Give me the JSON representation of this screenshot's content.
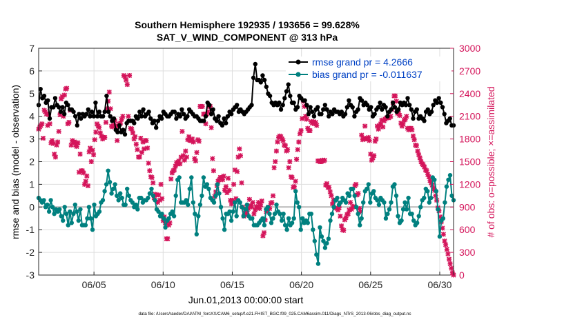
{
  "chart_data": {
    "type": "line",
    "title": "Southern Hemisphere 192935 / 193656 = 99.628%",
    "subtitle": "SAT_V_WIND_COMPONENT @ 313 hPa",
    "xlabel": "Jun.01,2013 00:00:00 start",
    "ylabel_left": "rmse and bias (model - observation)",
    "ylabel_right": "# of obs: o=possible; ×=assimilated",
    "footer": "data file: /Users/raeder/DAI/ATM_forcXX/CAM6_setup/f.e21.FHIST_BGC.f09_025.CAM6assim.011/Diags_NTrS_2013-06/obs_diag_output.nc",
    "xlim": [
      1,
      31
    ],
    "ylim_left": [
      -3,
      7
    ],
    "ylim_right": [
      0,
      3000
    ],
    "x_ticks": [
      5,
      10,
      15,
      20,
      25,
      30
    ],
    "x_tick_labels": [
      "06/05",
      "06/10",
      "06/15",
      "06/20",
      "06/25",
      "06/30"
    ],
    "y_left_ticks": [
      -3,
      -2,
      -1,
      0,
      1,
      2,
      3,
      4,
      5,
      6,
      7
    ],
    "y_right_ticks": [
      0,
      300,
      600,
      900,
      1200,
      1500,
      1800,
      2100,
      2400,
      2700,
      3000
    ],
    "legend": [
      "rmse grand pr = 4.2666",
      "bias grand pr = -0.011637"
    ],
    "colors": {
      "rmse": "#000000",
      "bias": "#00807f",
      "obs": "#d4145a",
      "legend_text": "#0041c4",
      "zero_line": "#b9b9b9"
    },
    "series": [
      {
        "name": "rmse",
        "values": [
          4.5,
          5.2,
          4.8,
          4.9,
          4.6,
          4.7,
          3.9,
          4.4,
          4.4,
          4.8,
          4.5,
          4.4,
          4.2,
          4.4,
          4.1,
          4.6,
          4.5,
          4.3,
          4.3,
          4.2,
          4.0,
          3.6,
          4.1,
          3.9,
          4.1,
          4.0,
          4.1,
          4.3,
          4.0,
          4.2,
          4.0,
          4.6,
          4.0,
          4.2,
          4.0,
          4.0,
          4.2,
          4.9,
          4.2,
          4.0,
          3.8,
          3.9,
          3.4,
          3.3,
          3.6,
          3.3,
          3.4,
          3.2,
          3.7,
          3.8,
          3.8,
          3.8,
          3.7,
          4.0,
          3.9,
          4.2,
          4.0,
          4.3,
          4.0,
          4.1,
          4.2,
          3.9,
          3.7,
          3.8,
          3.5,
          3.8,
          4.0,
          3.9,
          4.2,
          4.1,
          4.0,
          4.0,
          4.1,
          4.2,
          4.2,
          3.9,
          4.1,
          4.0,
          4.3,
          4.1,
          3.9,
          4.0,
          4.3,
          4.2,
          4.1,
          4.0,
          4.0,
          3.9,
          3.8,
          3.8,
          3.8,
          4.0,
          4.6,
          4.5,
          4.1,
          4.3,
          3.9,
          3.8,
          4.0,
          3.7,
          3.6,
          3.9,
          3.7,
          4.0,
          4.2,
          4.1,
          4.3,
          4.4,
          4.5,
          4.2,
          4.3,
          4.2,
          4.1,
          4.2,
          4.3,
          4.4,
          4.5,
          5.7,
          6.3,
          5.6,
          5.6,
          5.5,
          5.8,
          5.6,
          5.3,
          5.0,
          4.9,
          4.6,
          4.5,
          4.6,
          4.5,
          4.6,
          4.3,
          4.5,
          4.8,
          5.1,
          5.4,
          4.9,
          4.6,
          4.6,
          4.3,
          4.4,
          4.9,
          4.8,
          4.7,
          4.7,
          4.5,
          4.1,
          4.4,
          4.2,
          4.0,
          4.3,
          4.4,
          4.1,
          4.1,
          4.3,
          4.5,
          4.3,
          4.0,
          4.2,
          4.1,
          4.3,
          4.2,
          4.2,
          4.1,
          4.2,
          4.0,
          4.1,
          4.4,
          4.7,
          4.5,
          4.4,
          4.0,
          4.2,
          4.3,
          4.8,
          4.7,
          4.5,
          4.6,
          4.5,
          4.3,
          4.4,
          4.0,
          4.1,
          4.3,
          4.4,
          4.6,
          4.3,
          4.5,
          4.4,
          4.0,
          4.2,
          4.3,
          4.6,
          4.4,
          4.2,
          4.3,
          4.6,
          4.5,
          4.6,
          4.5,
          4.8,
          4.5,
          4.3,
          3.9,
          4.2,
          4.3,
          3.9,
          4.0,
          3.9,
          3.8,
          4.2,
          4.3,
          4.1,
          4.2,
          4.5,
          4.7,
          4.6,
          4.8,
          4.6,
          4.4,
          4.1,
          3.7,
          3.8,
          3.9,
          3.6,
          3.6
        ]
      },
      {
        "name": "bias",
        "values": [
          0.4,
          0.3,
          0.2,
          0.3,
          0.0,
          0.1,
          -0.2,
          0.3,
          0.0,
          -0.3,
          -0.1,
          -0.2,
          -0.1,
          -0.4,
          -0.6,
          0.0,
          -0.3,
          -0.8,
          -0.2,
          -0.7,
          -0.3,
          0.1,
          -0.2,
          -0.6,
          -0.1,
          -0.8,
          -0.8,
          -0.8,
          -0.5,
          0.0,
          -0.5,
          -1.0,
          0.1,
          -0.4,
          -0.3,
          -0.2,
          0.2,
          0.3,
          0.7,
          1.0,
          1.6,
          1.1,
          0.6,
          0.8,
          1.0,
          0.5,
          0.3,
          0.6,
          0.4,
          0.1,
          0.1,
          0.8,
          0.5,
          0.3,
          0.2,
          0.0,
          0.1,
          -0.1,
          0.4,
          0.4,
          0.2,
          0.3,
          0.3,
          0.4,
          0.6,
          0.8,
          0.5,
          0.3,
          -0.1,
          -0.2,
          -0.4,
          -0.3,
          -0.5,
          -0.9,
          -0.6,
          -0.5,
          -0.3,
          -0.2,
          -0.4,
          0.5,
          1.2,
          1.3,
          0.2,
          0.2,
          0.2,
          0.3,
          0.1,
          0.8,
          1.3,
          0.2,
          -0.3,
          -1.2,
          -0.4,
          0.1,
          0.5,
          1.3,
          0.9,
          1.0,
          0.8,
          0.4,
          0.3,
          0.2,
          0.5,
          1.0,
          0.6,
          0.0,
          -0.5,
          -1.0,
          -0.3,
          -0.3,
          -0.2,
          -0.6,
          -0.2,
          0.2,
          -0.4,
          0.3,
          0.2,
          0.0,
          -0.4,
          -0.1,
          0.1,
          -0.4,
          -0.5,
          -0.5,
          -0.8,
          -0.8,
          -0.8,
          -0.7,
          -0.6,
          -0.5,
          -0.8,
          -0.1,
          0.0,
          -0.3,
          -0.7,
          -0.5,
          -0.3,
          0.1,
          -0.2,
          -0.3,
          -0.6,
          -0.3,
          -0.8,
          -1.0,
          -0.5,
          -0.8,
          -0.7,
          -0.5,
          0.7,
          0.2,
          0.0,
          -1.0,
          -0.5,
          -0.7,
          -0.6,
          -0.7,
          -0.3,
          -0.3,
          -1.0,
          -1.5,
          -2.1,
          -2.5,
          -0.9,
          -1.3,
          -1.5,
          -1.8,
          -1.6,
          -1.4,
          -0.6,
          -0.3,
          0.0,
          0.3,
          0.4,
          0.1,
          0.2,
          0.4,
          0.3,
          0.2,
          0.6,
          0.5,
          0.8,
          0.8,
          0.5,
          0.0,
          -0.3,
          -0.8,
          -0.5,
          0.2,
          0.7,
          0.8,
          1.0,
          0.2,
          0.6,
          0.7,
          0.4,
          0.3,
          0.1,
          0.4,
          0.3,
          0.2,
          -0.5,
          -0.3,
          -0.1,
          0.2,
          0.9,
          1.0,
          0.5,
          -0.4,
          -0.7,
          -0.6,
          -0.1,
          0.2,
          -0.1,
          0.4,
          -0.3,
          -0.3,
          -0.6,
          -0.8,
          -0.7,
          -0.4,
          0.0,
          0.3,
          0.4,
          0.8,
          0.7,
          0.2,
          0.4,
          1.3,
          1.2,
          0.7,
          -0.1,
          -1.3,
          -0.6,
          -0.5,
          0.2,
          0.9,
          1.2,
          1.4,
          0.5,
          0.3
        ]
      },
      {
        "name": "obs_possible",
        "values": [
          1930,
          1960,
          1980,
          2000,
          1810,
          2180,
          2160,
          2130,
          1980,
          2120,
          2000,
          1750,
          1780,
          1740,
          1600,
          1560,
          1720,
          1760,
          1900,
          2120,
          2330,
          2360,
          2100,
          2380,
          2460,
          2470,
          2000,
          2020,
          2180,
          1720,
          1780,
          1760,
          1760,
          1720,
          1700,
          1750,
          1360,
          1600,
          1380,
          1380,
          1350,
          1200,
          1240,
          1310,
          1180,
          1630,
          1680,
          1500,
          1650,
          1590,
          1790,
          1890,
          2000,
          1970,
          1950,
          1880,
          1840,
          1800,
          1820,
          1820,
          2020,
          2200,
          2300,
          2420,
          2200,
          1970,
          1960,
          1980,
          2040,
          1970,
          1780,
          1970,
          2000,
          2010,
          2060,
          2100,
          2640,
          2620,
          2580,
          2520,
          2100,
          2640,
          1940,
          1930,
          1880,
          1800,
          1830,
          1730,
          1660,
          1560,
          1560,
          1810,
          1620,
          1760,
          1670,
          1780,
          1780,
          1680,
          1480,
          1380,
          1300,
          1290,
          1220,
          1020,
          1070,
          1060,
          960,
          1060,
          990,
          1200,
          1010,
          720,
          770,
          690,
          480,
          480,
          660,
          690,
          1270,
          1350,
          1380,
          1390,
          1440,
          1490,
          1470,
          1510,
          1470,
          1560,
          1900,
          1580,
          1520,
          1640,
          1560,
          1790,
          1830,
          1780,
          1780,
          1800,
          1760,
          1540,
          1510,
          1620,
          1790,
          1770,
          2230,
          2230,
          2230,
          2130,
          2130,
          2000,
          2130,
          2160,
          2230,
          2230,
          1950,
          1540,
          1380,
          1040,
          1100,
          1180,
          1240,
          1260,
          1290,
          1290,
          1260,
          1310,
          1120,
          1170,
          1090,
          1280,
          1120,
          990,
          940,
          990,
          1200,
          1390,
          1010,
          1370,
          1560,
          1670,
          1580,
          1220,
          900,
          780,
          820,
          800,
          840,
          880,
          1000,
          920,
          900,
          960,
          810,
          860,
          900,
          900,
          960,
          880,
          930,
          980,
          520,
          560,
          730,
          840,
          860,
          900,
          880,
          950,
          960,
          1050,
          1420,
          1500,
          1640,
          1760,
          1820,
          1840,
          1830,
          1800,
          1780,
          1720,
          1710,
          1640,
          1660,
          1420,
          1500,
          1300,
          1290,
          1160,
          1170,
          1240,
          1530,
          1660,
          1760,
          1870,
          1910,
          2070,
          2300,
          2230,
          2100,
          2060,
          1940,
          1910,
          1910,
          2030,
          2010,
          2030,
          2000,
          2020,
          1980,
          1510,
          1510,
          1500,
          1500,
          1520,
          1510,
          1520,
          1190,
          1210,
          1160,
          1160,
          1100,
          1050,
          940,
          990,
          990,
          890,
          880,
          860,
          890,
          780,
          650,
          600,
          590,
          730,
          760,
          800,
          810,
          860,
          960,
          870,
          900,
          910,
          1180,
          1200,
          1060,
          1080,
          880,
          840,
          1850,
          1790,
          1810,
          1970,
          1800,
          1800,
          1820,
          1780,
          1600,
          1520,
          1550,
          1580,
          1770,
          1800,
          1970,
          1930,
          1980,
          2000,
          2050,
          1960,
          2040,
          2060,
          2080,
          2080,
          2080,
          2090,
          2100,
          2190,
          2280,
          2370,
          2370,
          2300,
          2140,
          2140,
          2110,
          2010,
          1970,
          2000,
          2050,
          2060,
          2100,
          1940,
          1920,
          1940,
          1940,
          1920,
          1840,
          1790,
          1720,
          1710,
          1640,
          1590,
          1550,
          1500,
          1470,
          1460,
          1430,
          1390,
          1380,
          1330,
          1300,
          1250,
          1220,
          1190,
          1150,
          1120,
          1050,
          990,
          890,
          850,
          770,
          700,
          620,
          540,
          450,
          400,
          340,
          280,
          210,
          150,
          90,
          30,
          0
        ]
      }
    ]
  }
}
